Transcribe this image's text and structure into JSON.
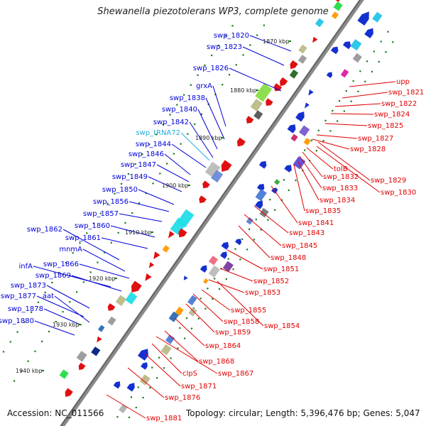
{
  "title": "Shewanella piezotolerans WP3, complete genome",
  "footer": {
    "accession": "Accession: NC_011566",
    "summary": "Topology: circular; Length: 5,396,476 bp; Genes: 5,047"
  },
  "colors": {
    "left_label": "#0000d8",
    "right_label": "#e00000",
    "trna_label": "#22aadd",
    "backbone": "#808080",
    "tick": "#1a7a1a"
  },
  "kbp_ticks": [
    {
      "label": "1870 kbp"
    },
    {
      "label": "1880 kbp"
    },
    {
      "label": "1890 kbp"
    },
    {
      "label": "1900 kbp"
    },
    {
      "label": "1910 kbp"
    },
    {
      "label": "1920 kbp"
    },
    {
      "label": "1930 kbp"
    },
    {
      "label": "1940 kbp"
    }
  ],
  "left_labels": [
    {
      "text": "swp_1820"
    },
    {
      "text": "swp_1823"
    },
    {
      "text": "swp_1826"
    },
    {
      "text": "grxA"
    },
    {
      "text": "swp_1838"
    },
    {
      "text": "swp_1840"
    },
    {
      "text": "swp_1842"
    },
    {
      "text": "swp_tRNA72"
    },
    {
      "text": "swp_1844"
    },
    {
      "text": "swp_1846"
    },
    {
      "text": "swp_1847"
    },
    {
      "text": "swp_1849"
    },
    {
      "text": "swp_1850"
    },
    {
      "text": "swp_1856"
    },
    {
      "text": "swp_1857"
    },
    {
      "text": "swp_1860"
    },
    {
      "text": "swp_1862"
    },
    {
      "text": "swp_1861"
    },
    {
      "text": "mnmA"
    },
    {
      "text": "swp_1866"
    },
    {
      "text": "infA"
    },
    {
      "text": "swp_1869"
    },
    {
      "text": "swp_1873"
    },
    {
      "text": "swp_1877"
    },
    {
      "text": "aat"
    },
    {
      "text": "swp_1878"
    },
    {
      "text": "swp_1880"
    }
  ],
  "right_labels": [
    {
      "text": "upp"
    },
    {
      "text": "swp_1821"
    },
    {
      "text": "swp_1822"
    },
    {
      "text": "swp_1824"
    },
    {
      "text": "swp_1825"
    },
    {
      "text": "swp_1827"
    },
    {
      "text": "swp_1828"
    },
    {
      "text": "tolB"
    },
    {
      "text": "swp_1829"
    },
    {
      "text": "swp_1832"
    },
    {
      "text": "swp_1830"
    },
    {
      "text": "swp_1833"
    },
    {
      "text": "swp_1834"
    },
    {
      "text": "swp_1835"
    },
    {
      "text": "swp_1841"
    },
    {
      "text": "swp_1843"
    },
    {
      "text": "swp_1845"
    },
    {
      "text": "swp_1848"
    },
    {
      "text": "swp_1851"
    },
    {
      "text": "swp_1852"
    },
    {
      "text": "swp_1853"
    },
    {
      "text": "swp_1855"
    },
    {
      "text": "swp_1854"
    },
    {
      "text": "swp_1858"
    },
    {
      "text": "swp_1859"
    },
    {
      "text": "swp_1864"
    },
    {
      "text": "swp_1868"
    },
    {
      "text": "swp_1867"
    },
    {
      "text": "clpS"
    },
    {
      "text": "swp_1871"
    },
    {
      "text": "swp_1876"
    },
    {
      "text": "swp_1881"
    }
  ]
}
